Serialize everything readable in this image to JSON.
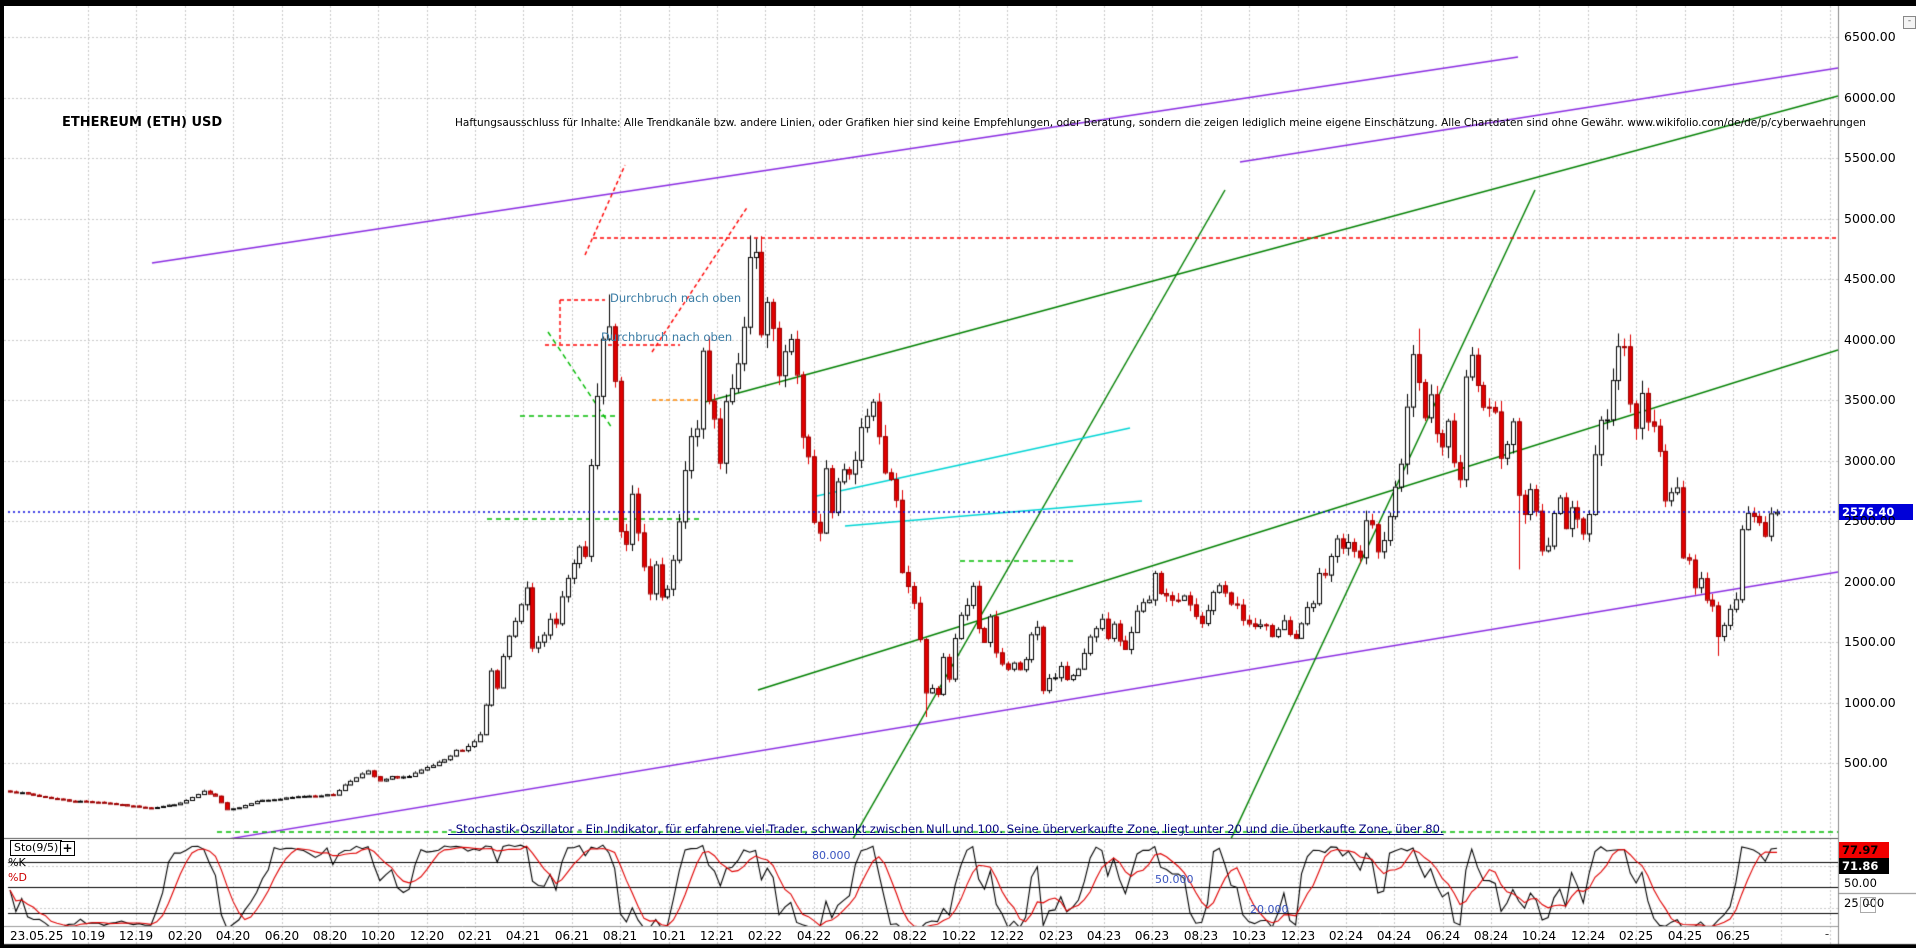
{
  "title": "ETHEREUM (ETH) USD",
  "disclaimer": "Haftungsausschluss für Inhalte: Alle Trendkanäle bzw. andere Linien, oder Grafiken hier sind keine Empfehlungen, oder Beratung, sondern die zeigen lediglich meine eigene Einschätzung. Alle Chartdaten sind ohne Gewähr.  www.wikifolio.com/de/de/p/cyberwaehrungen",
  "annotations": {
    "breakout_upper": "Durchbruch nach oben",
    "breakout_lower": "Durchbruch nach oben"
  },
  "stochastic_note": "- Stochastik-Oszillator - Ein Indikator, für erfahrene viel-Trader, schwankt zwischen Null und 100. Seine überverkaufte Zone, liegt unter 20 und die überkaufte Zone, über 80.",
  "price_axis": {
    "labels": [
      {
        "text": "6500.00",
        "value": 6500
      },
      {
        "text": "6000.00",
        "value": 6000
      },
      {
        "text": "5500.00",
        "value": 5500
      },
      {
        "text": "5000.00",
        "value": 5000
      },
      {
        "text": "4500.00",
        "value": 4500
      },
      {
        "text": "4000.00",
        "value": 4000
      },
      {
        "text": "3500.00",
        "value": 3500
      },
      {
        "text": "3000.00",
        "value": 3000
      },
      {
        "text": "2500.00",
        "value": 2500
      },
      {
        "text": "2000.00",
        "value": 2000
      },
      {
        "text": "1500.00",
        "value": 1500
      },
      {
        "text": "1000.00",
        "value": 1000
      },
      {
        "text": "500.00",
        "value": 500
      }
    ],
    "current_price_label": "2576.40"
  },
  "time_axis": {
    "first_label": "23.05.25",
    "ticks": [
      "10.19",
      "12.19",
      "02.20",
      "04.20",
      "06.20",
      "08.20",
      "10.20",
      "12.20",
      "02.21",
      "04.21",
      "06.21",
      "08.21",
      "10.21",
      "12.21",
      "02.22",
      "04.22",
      "06.22",
      "08.22",
      "10.22",
      "12.22",
      "02.23",
      "04.23",
      "06.23",
      "08.23",
      "10.23",
      "12.23",
      "02.24",
      "04.24",
      "06.24",
      "08.24",
      "10.24",
      "12.24",
      "02.25",
      "04.25",
      "06.25"
    ],
    "minus_button": "-"
  },
  "oscillator": {
    "indicator_label": "Sto(9/5)",
    "plus_button": "+",
    "k_label": "%K",
    "d_label": "%D",
    "level_80": "80.000",
    "level_50": "50.000",
    "level_20": "20.000",
    "d_value": "77.97",
    "k_value": "71.86",
    "axis_50": "50.00",
    "axis_25": "25.000"
  },
  "window": {
    "collapse_icon": "-",
    "corner_minus": "-"
  },
  "colors": {
    "up_candle": "#ffffff",
    "up_border": "#000000",
    "down_candle": "#e00000",
    "grid": "#c9c9c9",
    "purple": "#8a2be2",
    "green": "#008000",
    "green_dash": "#00bb00",
    "cyan": "#00d5d5",
    "red": "#ff0000",
    "orange": "#ff8800",
    "blue_line": "#0000dd",
    "price_badge_bg": "#0000d8"
  },
  "chart_data": {
    "type": "candlestick",
    "symbol": "ETHEREUM (ETH) USD",
    "timeframe": "weekly",
    "title": "ETHEREUM (ETH) USD",
    "ylabel": "USD",
    "ylim": [
      0,
      6800
    ],
    "price_gridlines": [
      500,
      1000,
      1500,
      2000,
      2500,
      3000,
      3500,
      4000,
      4500,
      5000,
      5500,
      6000,
      6500
    ],
    "x_first": "10.19",
    "x_last": "06.25",
    "current_price": 2576.4,
    "close_anchors": [
      [
        0,
        270
      ],
      [
        6,
        220
      ],
      [
        10,
        190
      ],
      [
        15,
        180
      ],
      [
        20,
        150
      ],
      [
        24,
        130
      ],
      [
        26,
        145
      ],
      [
        29,
        170
      ],
      [
        33,
        265
      ],
      [
        35,
        225
      ],
      [
        37,
        120
      ],
      [
        39,
        135
      ],
      [
        42,
        190
      ],
      [
        46,
        205
      ],
      [
        50,
        230
      ],
      [
        55,
        240
      ],
      [
        57,
        320
      ],
      [
        59,
        390
      ],
      [
        61,
        430
      ],
      [
        63,
        350
      ],
      [
        65,
        385
      ],
      [
        68,
        390
      ],
      [
        71,
        460
      ],
      [
        74,
        520
      ],
      [
        76,
        600
      ],
      [
        78,
        640
      ],
      [
        80,
        730
      ],
      [
        81,
        980
      ],
      [
        82,
        1250
      ],
      [
        83,
        1100
      ],
      [
        84,
        1380
      ],
      [
        86,
        1680
      ],
      [
        87,
        1800
      ],
      [
        88,
        1930
      ],
      [
        89,
        1450
      ],
      [
        91,
        1580
      ],
      [
        92,
        1730
      ],
      [
        93,
        1690
      ],
      [
        94,
        1840
      ],
      [
        95,
        2000
      ],
      [
        96,
        2140
      ],
      [
        97,
        2340
      ],
      [
        98,
        2200
      ],
      [
        99,
        2950
      ],
      [
        100,
        3500
      ],
      [
        101,
        3920
      ],
      [
        102,
        4150
      ],
      [
        103,
        3580
      ],
      [
        104,
        2400
      ],
      [
        105,
        2280
      ],
      [
        106,
        2710
      ],
      [
        107,
        2370
      ],
      [
        108,
        2160
      ],
      [
        109,
        1860
      ],
      [
        110,
        2140
      ],
      [
        111,
        1870
      ],
      [
        112,
        1970
      ],
      [
        113,
        2190
      ],
      [
        114,
        2530
      ],
      [
        115,
        2880
      ],
      [
        116,
        3150
      ],
      [
        117,
        3230
      ],
      [
        118,
        3880
      ],
      [
        119,
        3420
      ],
      [
        120,
        3330
      ],
      [
        121,
        2950
      ],
      [
        122,
        3420
      ],
      [
        123,
        3600
      ],
      [
        124,
        3850
      ],
      [
        125,
        4090
      ],
      [
        126,
        4620
      ],
      [
        127,
        4650
      ],
      [
        128,
        4100
      ],
      [
        129,
        4300
      ],
      [
        130,
        4100
      ],
      [
        131,
        3700
      ],
      [
        132,
        3960
      ],
      [
        133,
        4050
      ],
      [
        134,
        3720
      ],
      [
        135,
        3200
      ],
      [
        136,
        3080
      ],
      [
        137,
        2550
      ],
      [
        138,
        2440
      ],
      [
        139,
        3000
      ],
      [
        140,
        2620
      ],
      [
        141,
        2780
      ],
      [
        143,
        2950
      ],
      [
        144,
        3050
      ],
      [
        145,
        3290
      ],
      [
        147,
        3450
      ],
      [
        148,
        3220
      ],
      [
        149,
        2920
      ],
      [
        150,
        2810
      ],
      [
        151,
        2650
      ],
      [
        152,
        2050
      ],
      [
        153,
        1960
      ],
      [
        154,
        1800
      ],
      [
        155,
        1530
      ],
      [
        156,
        1080
      ],
      [
        157,
        1130
      ],
      [
        158,
        1070
      ],
      [
        159,
        1360
      ],
      [
        160,
        1220
      ],
      [
        161,
        1550
      ],
      [
        162,
        1700
      ],
      [
        163,
        1780
      ],
      [
        164,
        1940
      ],
      [
        165,
        1620
      ],
      [
        166,
        1510
      ],
      [
        167,
        1680
      ],
      [
        168,
        1430
      ],
      [
        169,
        1330
      ],
      [
        170,
        1280
      ],
      [
        171,
        1310
      ],
      [
        172,
        1280
      ],
      [
        173,
        1330
      ],
      [
        174,
        1560
      ],
      [
        175,
        1630
      ],
      [
        176,
        1110
      ],
      [
        177,
        1200
      ],
      [
        178,
        1220
      ],
      [
        179,
        1280
      ],
      [
        180,
        1190
      ],
      [
        181,
        1200
      ],
      [
        182,
        1260
      ],
      [
        183,
        1410
      ],
      [
        184,
        1550
      ],
      [
        185,
        1600
      ],
      [
        186,
        1660
      ],
      [
        187,
        1530
      ],
      [
        188,
        1640
      ],
      [
        190,
        1430
      ],
      [
        191,
        1590
      ],
      [
        192,
        1750
      ],
      [
        193,
        1800
      ],
      [
        194,
        1860
      ],
      [
        195,
        2090
      ],
      [
        196,
        1940
      ],
      [
        197,
        1870
      ],
      [
        198,
        1830
      ],
      [
        199,
        1810
      ],
      [
        200,
        1900
      ],
      [
        201,
        1830
      ],
      [
        202,
        1750
      ],
      [
        203,
        1640
      ],
      [
        204,
        1730
      ],
      [
        205,
        1890
      ],
      [
        206,
        1940
      ],
      [
        207,
        1870
      ],
      [
        208,
        1840
      ],
      [
        210,
        1700
      ],
      [
        211,
        1650
      ],
      [
        212,
        1640
      ],
      [
        214,
        1620
      ],
      [
        215,
        1540
      ],
      [
        216,
        1590
      ],
      [
        217,
        1670
      ],
      [
        218,
        1560
      ],
      [
        219,
        1550
      ],
      [
        220,
        1630
      ],
      [
        221,
        1790
      ],
      [
        222,
        1850
      ],
      [
        223,
        2050
      ],
      [
        224,
        2060
      ],
      [
        226,
        2350
      ],
      [
        227,
        2240
      ],
      [
        228,
        2280
      ],
      [
        229,
        2290
      ],
      [
        230,
        2240
      ],
      [
        231,
        2530
      ],
      [
        232,
        2470
      ],
      [
        233,
        2260
      ],
      [
        234,
        2300
      ],
      [
        235,
        2500
      ],
      [
        236,
        2780
      ],
      [
        237,
        2920
      ],
      [
        238,
        3480
      ],
      [
        239,
        3880
      ],
      [
        240,
        3580
      ],
      [
        241,
        3330
      ],
      [
        242,
        3500
      ],
      [
        243,
        3250
      ],
      [
        244,
        3060
      ],
      [
        245,
        3260
      ],
      [
        246,
        2940
      ],
      [
        247,
        2910
      ],
      [
        248,
        3750
      ],
      [
        249,
        3830
      ],
      [
        250,
        3690
      ],
      [
        251,
        3510
      ],
      [
        252,
        3380
      ],
      [
        253,
        3440
      ],
      [
        254,
        3010
      ],
      [
        255,
        3170
      ],
      [
        256,
        3280
      ],
      [
        257,
        2690
      ],
      [
        258,
        2610
      ],
      [
        259,
        2770
      ],
      [
        260,
        2530
      ],
      [
        261,
        2300
      ],
      [
        262,
        2340
      ],
      [
        263,
        2580
      ],
      [
        264,
        2660
      ],
      [
        265,
        2420
      ],
      [
        266,
        2640
      ],
      [
        267,
        2520
      ],
      [
        268,
        2440
      ],
      [
        269,
        2560
      ],
      [
        270,
        3060
      ],
      [
        271,
        3330
      ],
      [
        272,
        3390
      ],
      [
        273,
        3620
      ],
      [
        274,
        3980
      ],
      [
        275,
        3910
      ],
      [
        276,
        3420
      ],
      [
        277,
        3340
      ],
      [
        278,
        3610
      ],
      [
        279,
        3290
      ],
      [
        280,
        3230
      ],
      [
        281,
        3110
      ],
      [
        282,
        2630
      ],
      [
        283,
        2720
      ],
      [
        284,
        2800
      ],
      [
        285,
        2240
      ],
      [
        286,
        2220
      ],
      [
        287,
        1910
      ],
      [
        288,
        2010
      ],
      [
        289,
        1870
      ],
      [
        290,
        1800
      ],
      [
        291,
        1580
      ],
      [
        292,
        1640
      ],
      [
        293,
        1780
      ],
      [
        294,
        1830
      ],
      [
        295,
        2470
      ],
      [
        296,
        2540
      ],
      [
        297,
        2580
      ],
      [
        298,
        2520
      ],
      [
        299,
        2410
      ],
      [
        300,
        2520
      ],
      [
        301,
        2576.4
      ]
    ],
    "wick_overrides": {
      "102": {
        "high": 4372
      },
      "126": {
        "high": 4860
      },
      "156": {
        "low": 880
      },
      "240": {
        "high": 4090
      },
      "257": {
        "low": 2100
      },
      "274": {
        "high": 4050
      },
      "291": {
        "low": 1385
      }
    },
    "stochastic": {
      "indicator": "Sto(9/5)",
      "k_period": 9,
      "d_period": 5,
      "levels": [
        80,
        50,
        20
      ],
      "last_d": 77.97,
      "last_k": 71.86
    },
    "trendlines": [
      {
        "name": "purple-channel-top",
        "color": "purple",
        "dash": null,
        "pts": [
          152,
          263,
          1518,
          57
        ]
      },
      {
        "name": "purple-upper-right",
        "color": "purple",
        "dash": null,
        "pts": [
          1240,
          162,
          1838,
          68
        ]
      },
      {
        "name": "purple-long-support",
        "color": "purple",
        "dash": null,
        "pts": [
          162,
          850,
          1838,
          572
        ]
      },
      {
        "name": "green-steep-left",
        "color": "green",
        "dash": null,
        "pts": [
          815,
          905,
          1225,
          190
        ]
      },
      {
        "name": "green-steep-right",
        "color": "green",
        "dash": null,
        "pts": [
          1200,
          905,
          1535,
          190
        ]
      },
      {
        "name": "green-long-upper",
        "color": "green",
        "dash": null,
        "pts": [
          705,
          402,
          1838,
          96
        ]
      },
      {
        "name": "green-long-lower",
        "color": "green",
        "dash": null,
        "pts": [
          758,
          690,
          1838,
          350
        ]
      },
      {
        "name": "red-ath-resistance",
        "color": "red",
        "dash": [
          4,
          3
        ],
        "pts": [
          593,
          238,
          1838,
          238
        ]
      },
      {
        "name": "red-pointer-h",
        "color": "red",
        "dash": [
          4,
          3
        ],
        "pts": [
          560,
          300,
          605,
          300
        ]
      },
      {
        "name": "red-pointer-v",
        "color": "red",
        "dash": [
          4,
          3
        ],
        "pts": [
          560,
          300,
          560,
          344
        ]
      },
      {
        "name": "red-underline",
        "color": "red",
        "dash": [
          4,
          3
        ],
        "pts": [
          545,
          345,
          680,
          345
        ]
      },
      {
        "name": "red-diag-peak1",
        "color": "red",
        "dash": [
          4,
          3
        ],
        "pts": [
          585,
          255,
          625,
          165
        ]
      },
      {
        "name": "red-diag-peak2",
        "color": "red",
        "dash": [
          4,
          3
        ],
        "pts": [
          652,
          352,
          748,
          206
        ]
      },
      {
        "name": "orange-dash-level",
        "color": "orange",
        "dash": [
          4,
          3
        ],
        "pts": [
          652,
          400,
          710,
          400
        ]
      },
      {
        "name": "green-dash-level-a",
        "color": "green_dash",
        "dash": [
          5,
          4
        ],
        "pts": [
          520,
          416,
          622,
          416
        ]
      },
      {
        "name": "green-dash-level-b",
        "color": "green_dash",
        "dash": [
          5,
          4
        ],
        "pts": [
          487,
          519,
          700,
          519
        ]
      },
      {
        "name": "green-dash-diag",
        "color": "green_dash",
        "dash": [
          5,
          4
        ],
        "pts": [
          548,
          332,
          612,
          428
        ]
      },
      {
        "name": "green-dash-long-bottom",
        "color": "green_dash",
        "dash": [
          5,
          4
        ],
        "pts": [
          217,
          832,
          1838,
          832
        ]
      },
      {
        "name": "green-dash-level-e",
        "color": "green_dash",
        "dash": [
          5,
          4
        ],
        "pts": [
          960,
          561,
          1075,
          561
        ]
      },
      {
        "name": "cyan-channel-1",
        "color": "cyan",
        "dash": null,
        "pts": [
          812,
          497,
          1130,
          428
        ]
      },
      {
        "name": "cyan-channel-2",
        "color": "cyan",
        "dash": null,
        "pts": [
          845,
          526,
          1142,
          501
        ]
      },
      {
        "name": "blue-current-price",
        "color": "blue_line",
        "dash": [
          2,
          3
        ],
        "pts": [
          8,
          512,
          1838,
          512
        ]
      }
    ]
  }
}
